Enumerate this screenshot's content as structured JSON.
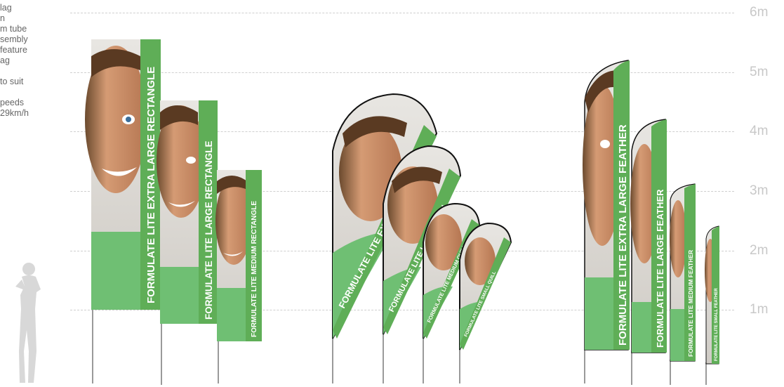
{
  "specs": [
    "lag",
    "n",
    "m tube",
    "sembly",
    "feature",
    "ag",
    "",
    "to suit",
    "",
    "peeds",
    "29km/h"
  ],
  "height_labels": [
    "6m",
    "5m",
    "4m",
    "3m",
    "2m",
    "1m"
  ],
  "flags": {
    "rect_xl": "FORMULATE LITE EXTRA LARGE RECTANGLE",
    "rect_l": "FORMULATE LITE LARGE RECTANGLE",
    "rect_m": "FORMULATE LITE MEDIUM RECTANGLE",
    "quill_xl": "FORMULATE LITE EXTRA LARGE QUILL",
    "quill_l": "FORMULATE LITE LARGE QUILL",
    "quill_m": "FORMULATE LITE MEDIUM QUILL",
    "quill_s": "FORMULATE LITE SMALL QUILL",
    "feather_xl": "FORMULATE LITE EXTRA LARGE FEATHER",
    "feather_l": "FORMULATE LITE LARGE FEATHER",
    "feather_m": "FORMULATE LITE MEDIUM FEATHER",
    "feather_s": "FORMULATE LITE SMALL FEATHER"
  },
  "colors": {
    "banner_green": "#5fae57",
    "shirt_green": "#6fbf73",
    "grid": "#cfcfcf",
    "label": "#c8c8c8",
    "silhouette": "#d8d8d8"
  }
}
